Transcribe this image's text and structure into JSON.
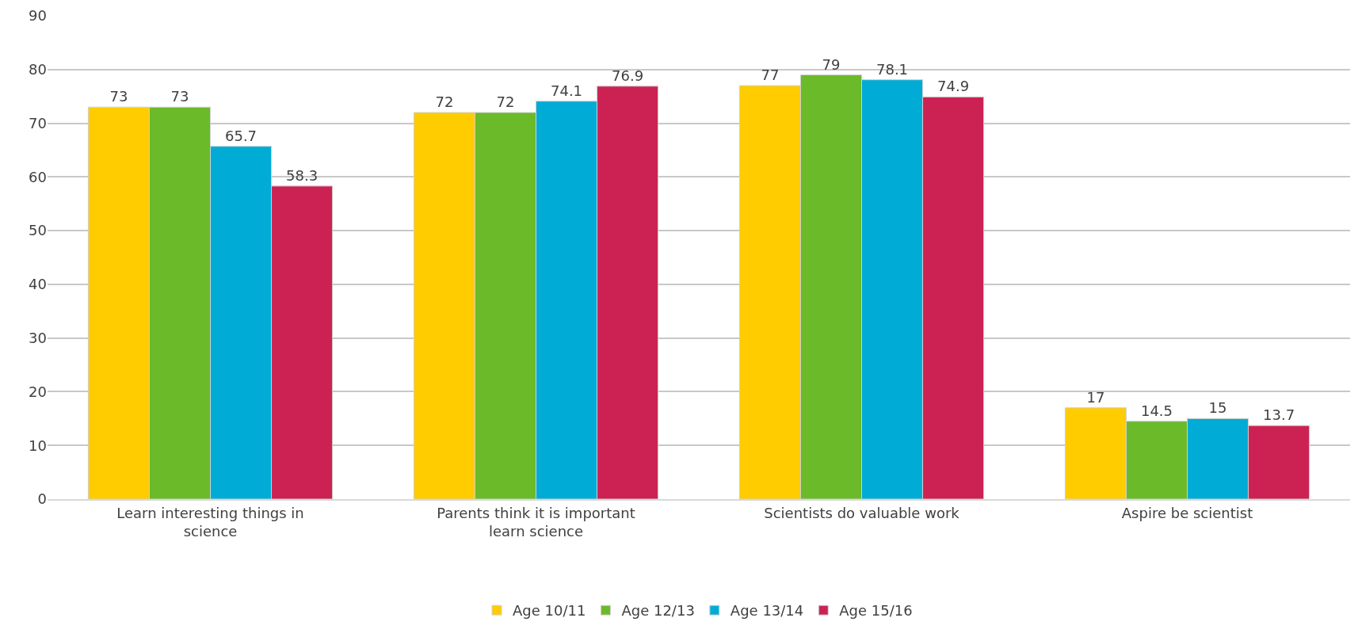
{
  "chart_data": {
    "type": "bar",
    "categories": [
      "Learn interesting things in science",
      "Parents think it is important learn science",
      "Scientists do valuable work",
      "Aspire be scientist"
    ],
    "series": [
      {
        "name": "Age 10/11",
        "color": "#ffcc00",
        "values": [
          73,
          72,
          77,
          17
        ]
      },
      {
        "name": "Age 12/13",
        "color": "#6aba2a",
        "values": [
          73,
          72,
          79,
          14.5
        ]
      },
      {
        "name": "Age 13/14",
        "color": "#00acd6",
        "values": [
          65.7,
          74.1,
          78.1,
          15
        ]
      },
      {
        "name": "Age 15/16",
        "color": "#cc2253",
        "values": [
          58.3,
          76.9,
          74.9,
          13.7
        ]
      }
    ],
    "ylim": [
      0,
      90
    ],
    "yticks": [
      0,
      10,
      20,
      30,
      40,
      50,
      60,
      70,
      80,
      90
    ],
    "grid": "y",
    "legend": "bottom",
    "data_labels": true
  }
}
